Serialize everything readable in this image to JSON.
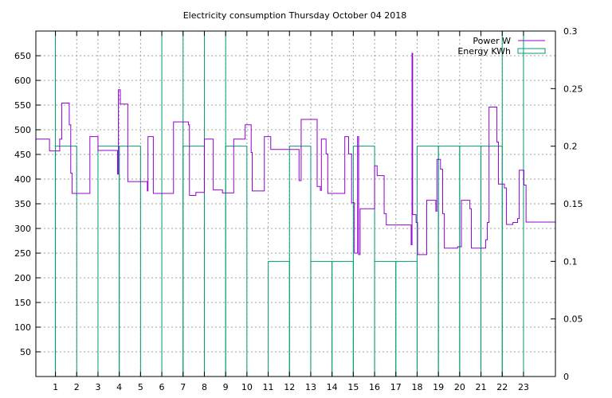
{
  "chart_data": {
    "type": "line",
    "title": "Electricity consumption Thursday October 04 2018",
    "x_ticks": [
      "1",
      "2",
      "3",
      "4",
      "5",
      "6",
      "7",
      "8",
      "9",
      "10",
      "11",
      "12",
      "13",
      "14",
      "15",
      "16",
      "17",
      "18",
      "19",
      "20",
      "21",
      "22",
      "23"
    ],
    "xlim": [
      0.08,
      24.5
    ],
    "y_ticks": [
      50,
      100,
      150,
      200,
      250,
      300,
      350,
      400,
      450,
      500,
      550,
      600,
      650
    ],
    "ylim": [
      0,
      700
    ],
    "y2_ticks": [
      "0",
      "0.05",
      "0.1",
      "0.15",
      "0.2",
      "0.25",
      "0.3"
    ],
    "y2lim": [
      0,
      0.3
    ],
    "grid": true,
    "legend_position": "top-right",
    "colors": {
      "power": "#9400d3",
      "energy": "#009e73"
    },
    "series": [
      {
        "name": "Power W",
        "style": "step",
        "points": [
          [
            0.08,
            481
          ],
          [
            0.72,
            481
          ],
          [
            0.72,
            457
          ],
          [
            1.2,
            457
          ],
          [
            1.2,
            481
          ],
          [
            1.3,
            481
          ],
          [
            1.3,
            554
          ],
          [
            1.65,
            554
          ],
          [
            1.65,
            510
          ],
          [
            1.72,
            510
          ],
          [
            1.72,
            412
          ],
          [
            1.78,
            412
          ],
          [
            1.78,
            371
          ],
          [
            2.62,
            371
          ],
          [
            2.62,
            486
          ],
          [
            3.0,
            486
          ],
          [
            3.0,
            458
          ],
          [
            3.92,
            458
          ],
          [
            3.92,
            410
          ],
          [
            3.96,
            410
          ],
          [
            3.96,
            581
          ],
          [
            4.05,
            581
          ],
          [
            4.05,
            552
          ],
          [
            4.4,
            552
          ],
          [
            4.4,
            395
          ],
          [
            5.32,
            395
          ],
          [
            5.32,
            376
          ],
          [
            5.35,
            376
          ],
          [
            5.35,
            486
          ],
          [
            5.6,
            486
          ],
          [
            5.6,
            371
          ],
          [
            6.55,
            371
          ],
          [
            6.55,
            516
          ],
          [
            7.25,
            516
          ],
          [
            7.25,
            510
          ],
          [
            7.3,
            510
          ],
          [
            7.3,
            367
          ],
          [
            7.6,
            367
          ],
          [
            7.6,
            373
          ],
          [
            8.0,
            373
          ],
          [
            8.0,
            481
          ],
          [
            8.42,
            481
          ],
          [
            8.42,
            378
          ],
          [
            8.85,
            378
          ],
          [
            8.85,
            372
          ],
          [
            9.38,
            372
          ],
          [
            9.38,
            481
          ],
          [
            9.92,
            481
          ],
          [
            9.92,
            510
          ],
          [
            10.2,
            510
          ],
          [
            10.2,
            454
          ],
          [
            10.25,
            454
          ],
          [
            10.25,
            376
          ],
          [
            10.82,
            376
          ],
          [
            10.82,
            486
          ],
          [
            11.12,
            486
          ],
          [
            11.12,
            460
          ],
          [
            12.45,
            460
          ],
          [
            12.45,
            397
          ],
          [
            12.55,
            397
          ],
          [
            12.55,
            521
          ],
          [
            13.3,
            521
          ],
          [
            13.3,
            385
          ],
          [
            13.45,
            385
          ],
          [
            13.45,
            377
          ],
          [
            13.5,
            377
          ],
          [
            13.5,
            481
          ],
          [
            13.72,
            481
          ],
          [
            13.72,
            451
          ],
          [
            13.8,
            451
          ],
          [
            13.8,
            371
          ],
          [
            14.6,
            371
          ],
          [
            14.6,
            486
          ],
          [
            14.78,
            486
          ],
          [
            14.78,
            451
          ],
          [
            14.92,
            451
          ],
          [
            14.92,
            352
          ],
          [
            15.05,
            352
          ],
          [
            15.05,
            250
          ],
          [
            15.2,
            250
          ],
          [
            15.2,
            486
          ],
          [
            15.25,
            486
          ],
          [
            15.25,
            247
          ],
          [
            15.32,
            247
          ],
          [
            15.32,
            340
          ],
          [
            16.0,
            340
          ],
          [
            16.0,
            427
          ],
          [
            16.12,
            427
          ],
          [
            16.12,
            407
          ],
          [
            16.45,
            407
          ],
          [
            16.45,
            330
          ],
          [
            16.55,
            330
          ],
          [
            16.55,
            307
          ],
          [
            17.72,
            307
          ],
          [
            17.72,
            267
          ],
          [
            17.76,
            267
          ],
          [
            17.76,
            655
          ],
          [
            17.79,
            655
          ],
          [
            17.79,
            328
          ],
          [
            17.95,
            328
          ],
          [
            17.95,
            312
          ],
          [
            18.02,
            312
          ],
          [
            18.02,
            247
          ],
          [
            18.45,
            247
          ],
          [
            18.45,
            357
          ],
          [
            18.88,
            357
          ],
          [
            18.88,
            335
          ],
          [
            18.93,
            335
          ],
          [
            18.93,
            440
          ],
          [
            19.1,
            440
          ],
          [
            19.1,
            420
          ],
          [
            19.2,
            420
          ],
          [
            19.2,
            330
          ],
          [
            19.28,
            330
          ],
          [
            19.28,
            260
          ],
          [
            19.9,
            260
          ],
          [
            19.9,
            263
          ],
          [
            20.08,
            263
          ],
          [
            20.08,
            357
          ],
          [
            20.48,
            357
          ],
          [
            20.48,
            340
          ],
          [
            20.55,
            340
          ],
          [
            20.55,
            260
          ],
          [
            21.22,
            260
          ],
          [
            21.22,
            277
          ],
          [
            21.3,
            277
          ],
          [
            21.3,
            312
          ],
          [
            21.38,
            312
          ],
          [
            21.38,
            546
          ],
          [
            21.75,
            546
          ],
          [
            21.75,
            475
          ],
          [
            21.82,
            475
          ],
          [
            21.82,
            390
          ],
          [
            22.1,
            390
          ],
          [
            22.1,
            382
          ],
          [
            22.2,
            382
          ],
          [
            22.2,
            308
          ],
          [
            22.5,
            308
          ],
          [
            22.5,
            312
          ],
          [
            22.72,
            312
          ],
          [
            22.72,
            320
          ],
          [
            22.8,
            320
          ],
          [
            22.8,
            418
          ],
          [
            23.02,
            418
          ],
          [
            23.02,
            388
          ],
          [
            23.12,
            388
          ],
          [
            23.12,
            313
          ],
          [
            24.5,
            313
          ]
        ]
      },
      {
        "name": "Energy KWh",
        "style": "boxes",
        "boxes": [
          [
            0,
            1,
            0.3
          ],
          [
            1,
            2,
            0.2
          ],
          [
            2,
            3,
            0
          ],
          [
            3,
            4,
            0.2
          ],
          [
            4,
            5,
            0.2
          ],
          [
            5,
            6,
            0
          ],
          [
            6,
            7,
            0.3
          ],
          [
            7,
            8,
            0.2
          ],
          [
            8,
            9,
            0.3
          ],
          [
            9,
            10,
            0.2
          ],
          [
            10,
            11,
            0
          ],
          [
            11,
            12,
            0.1
          ],
          [
            12,
            13,
            0.2
          ],
          [
            13,
            14,
            0.1
          ],
          [
            14,
            15,
            0.1
          ],
          [
            15,
            16,
            0.2
          ],
          [
            16,
            17,
            0.1
          ],
          [
            17,
            18,
            0.1
          ],
          [
            18,
            19,
            0.2
          ],
          [
            19,
            20,
            0.2
          ],
          [
            20,
            21,
            0.2
          ],
          [
            21,
            22,
            0.2
          ],
          [
            22,
            23,
            0.3
          ],
          [
            23,
            24,
            0
          ],
          [
            24,
            24.5,
            0
          ]
        ]
      }
    ]
  }
}
